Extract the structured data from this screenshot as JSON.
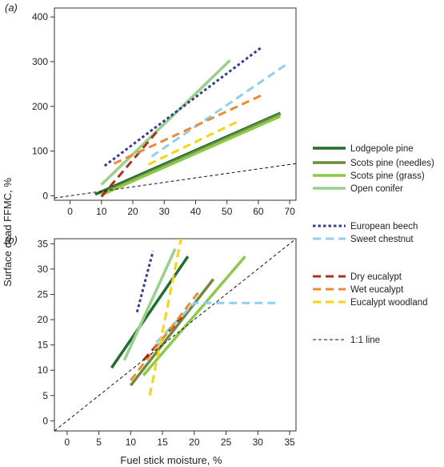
{
  "chart_data": {
    "shared_ylabel": "Surface dead FFMC, %",
    "shared_xlabel": "Fuel stick moisture, %",
    "legend": [
      {
        "name": "Lodgepole pine",
        "color": "#1f6e2e",
        "dash": "solid"
      },
      {
        "name": "Scots pine (needles)",
        "color": "#6e8b3d",
        "dash": "solid"
      },
      {
        "name": "Scots pine (grass)",
        "color": "#8cc84b",
        "dash": "solid"
      },
      {
        "name": "Open conifer",
        "color": "#98d08c",
        "dash": "solid"
      },
      {
        "name": "European beech",
        "color": "#3b3d8f",
        "dash": "dotted"
      },
      {
        "name": "Sweet chestnut",
        "color": "#8fd0f0",
        "dash": "dashed"
      },
      {
        "name": "Dry eucalypt",
        "color": "#a8321e",
        "dash": "dashed"
      },
      {
        "name": "Wet eucalypt",
        "color": "#f08a30",
        "dash": "dashed"
      },
      {
        "name": "Eucalypt woodland",
        "color": "#f5d416",
        "dash": "dashed"
      },
      {
        "name": "1:1 line",
        "color": "#111111",
        "dash": "fine"
      }
    ],
    "panels": [
      {
        "type": "line",
        "label": "(a)",
        "xlim": [
          -5,
          72
        ],
        "ylim": [
          -10,
          420
        ],
        "xticks": [
          0,
          10,
          20,
          30,
          40,
          50,
          60,
          70
        ],
        "yticks": [
          0,
          100,
          200,
          300,
          400
        ],
        "series": [
          {
            "name": "Lodgepole pine",
            "x": [
              8,
              67
            ],
            "y": [
              3,
              185
            ]
          },
          {
            "name": "Scots pine (needles)",
            "x": [
              10,
              67
            ],
            "y": [
              5,
              183
            ]
          },
          {
            "name": "Scots pine (grass)",
            "x": [
              10,
              67
            ],
            "y": [
              2,
              178
            ]
          },
          {
            "name": "Open conifer",
            "x": [
              10,
              51
            ],
            "y": [
              25,
              303
            ]
          },
          {
            "name": "European beech",
            "x": [
              11,
              61
            ],
            "y": [
              67,
              332
            ]
          },
          {
            "name": "Sweet chestnut",
            "x": [
              26,
              69
            ],
            "y": [
              88,
              294
            ]
          },
          {
            "name": "Dry eucalypt",
            "x": [
              10,
              28
            ],
            "y": [
              -2,
              146
            ]
          },
          {
            "name": "Wet eucalypt",
            "x": [
              14,
              62
            ],
            "y": [
              72,
              228
            ]
          },
          {
            "name": "Eucalypt woodland",
            "x": [
              25,
              54
            ],
            "y": [
              70,
              168
            ]
          },
          {
            "name": "1:1 line",
            "x": [
              -5,
              72
            ],
            "y": [
              -5,
              72
            ]
          }
        ]
      },
      {
        "type": "line",
        "label": "(b)",
        "xlim": [
          -2,
          36
        ],
        "ylim": [
          -2,
          36
        ],
        "xticks": [
          0,
          5,
          10,
          15,
          20,
          25,
          30,
          35
        ],
        "yticks": [
          0,
          5,
          10,
          15,
          20,
          25,
          30,
          35
        ],
        "series": [
          {
            "name": "Lodgepole pine",
            "x": [
              7,
              19
            ],
            "y": [
              10.5,
              32.5
            ]
          },
          {
            "name": "Scots pine (needles)",
            "x": [
              10,
              23
            ],
            "y": [
              7,
              28
            ]
          },
          {
            "name": "Scots pine (grass)",
            "x": [
              12,
              28
            ],
            "y": [
              9,
              32.5
            ]
          },
          {
            "name": "Open conifer",
            "x": [
              9,
              17
            ],
            "y": [
              12,
              34
            ]
          },
          {
            "name": "European beech",
            "x": [
              11,
              13.5
            ],
            "y": [
              21.5,
              33.5
            ]
          },
          {
            "name": "Sweet chestnut",
            "x": [
              14,
              20,
              33.5
            ],
            "y": [
              15.5,
              23.3,
              23.3
            ]
          },
          {
            "name": "Dry eucalypt",
            "x": [
              12,
              18
            ],
            "y": [
              12,
              20.5
            ]
          },
          {
            "name": "Wet eucalypt",
            "x": [
              10,
              21
            ],
            "y": [
              8,
              26
            ]
          },
          {
            "name": "Eucalypt woodland",
            "x": [
              13,
              18
            ],
            "y": [
              5,
              36.5
            ]
          },
          {
            "name": "1:1 line",
            "x": [
              -2,
              36
            ],
            "y": [
              -2,
              36
            ]
          }
        ]
      }
    ]
  }
}
